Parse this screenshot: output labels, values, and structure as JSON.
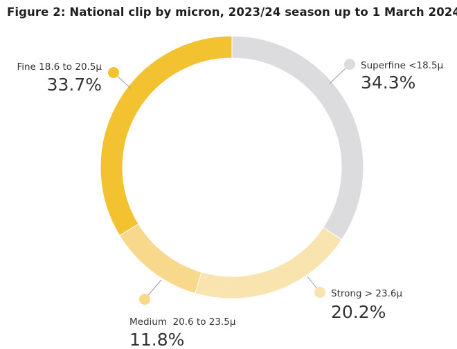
{
  "chart_data": {
    "type": "pie",
    "title": "Figure 2: National clip by micron, 2023/24 season up to 1 March 2024",
    "donut": true,
    "slices": [
      {
        "label": "Superfine <18.5µ",
        "value": 34.3,
        "display": "34.3%",
        "color": "#dcdcdf"
      },
      {
        "label": "Strong > 23.6µ",
        "value": 20.2,
        "display": "20.2%",
        "color": "#f9e3ae"
      },
      {
        "label": "Medium  20.6 to 23.5µ",
        "value": 11.8,
        "display": "11.8%",
        "color": "#f8d88a"
      },
      {
        "label": "Fine 18.6 to 20.5µ",
        "value": 33.7,
        "display": "33.7%",
        "color": "#f3c230"
      }
    ]
  }
}
